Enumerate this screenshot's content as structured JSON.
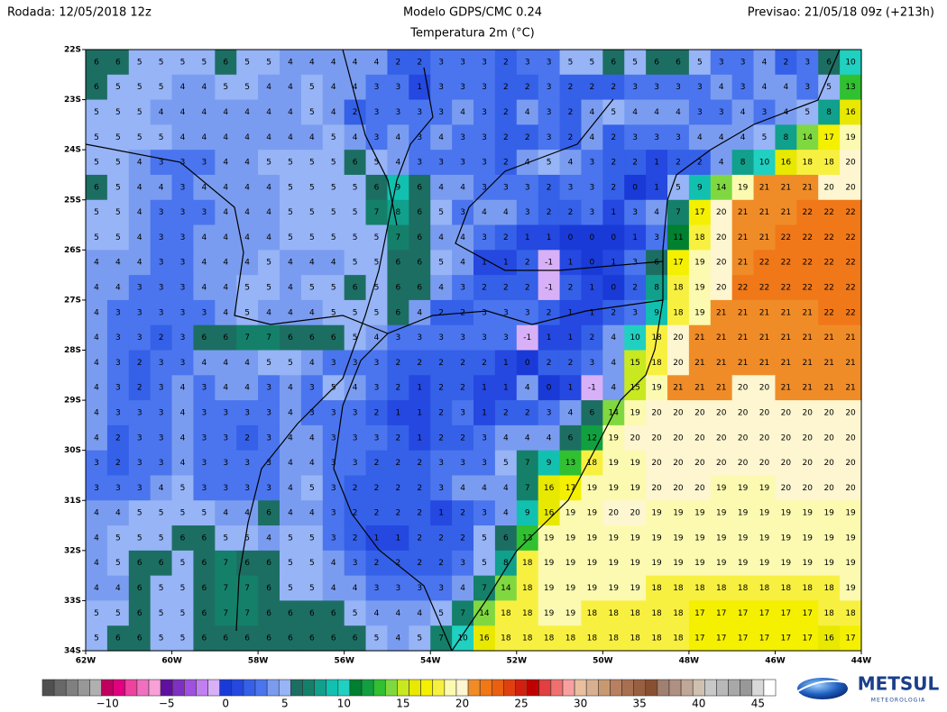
{
  "header": {
    "run": "Rodada: 12/05/2018 12z",
    "model": "Modelo GDPS/CMC 0.24",
    "field": "Temperatura 2m (°C)",
    "forecast": "Previsao: 21/05/18 09z (+213h)"
  },
  "map": {
    "xlim": [
      -62,
      -44
    ],
    "ylim": [
      -22,
      -34
    ],
    "xticks": [
      {
        "value": -62,
        "label": "62W"
      },
      {
        "value": -60,
        "label": "60W"
      },
      {
        "value": -58,
        "label": "58W"
      },
      {
        "value": -56,
        "label": "56W"
      },
      {
        "value": -54,
        "label": "54W"
      },
      {
        "value": -52,
        "label": "52W"
      },
      {
        "value": -50,
        "label": "50W"
      },
      {
        "value": -48,
        "label": "48W"
      },
      {
        "value": -46,
        "label": "46W"
      },
      {
        "value": -44,
        "label": "44W"
      }
    ],
    "yticks": [
      {
        "value": -22,
        "label": "22S"
      },
      {
        "value": -23,
        "label": "23S"
      },
      {
        "value": -24,
        "label": "24S"
      },
      {
        "value": -25,
        "label": "25S"
      },
      {
        "value": -26,
        "label": "26S"
      },
      {
        "value": -27,
        "label": "27S"
      },
      {
        "value": -28,
        "label": "28S"
      },
      {
        "value": -29,
        "label": "29S"
      },
      {
        "value": -30,
        "label": "30S"
      },
      {
        "value": -31,
        "label": "31S"
      },
      {
        "value": -32,
        "label": "32S"
      },
      {
        "value": -33,
        "label": "33S"
      },
      {
        "value": -34,
        "label": "34S"
      }
    ],
    "values": [
      [
        6,
        6,
        5,
        5,
        5,
        5,
        6,
        5,
        5,
        4,
        4,
        4,
        4,
        4,
        2,
        2,
        3,
        3,
        3,
        2,
        3,
        3,
        5,
        5,
        6,
        5,
        6,
        6,
        5,
        3,
        3,
        4,
        2,
        3,
        6,
        10
      ],
      [
        6,
        5,
        5,
        5,
        4,
        4,
        5,
        5,
        4,
        4,
        5,
        4,
        4,
        3,
        3,
        1,
        3,
        3,
        3,
        2,
        2,
        3,
        2,
        2,
        2,
        3,
        3,
        3,
        3,
        4,
        3,
        4,
        4,
        3,
        5,
        13
      ],
      [
        5,
        5,
        5,
        4,
        4,
        4,
        4,
        4,
        4,
        4,
        5,
        4,
        2,
        3,
        3,
        3,
        3,
        4,
        3,
        2,
        4,
        3,
        2,
        4,
        5,
        4,
        4,
        4,
        3,
        3,
        4,
        3,
        4,
        5,
        8,
        16
      ],
      [
        5,
        5,
        5,
        5,
        4,
        4,
        4,
        4,
        4,
        4,
        4,
        5,
        4,
        3,
        4,
        3,
        4,
        3,
        3,
        2,
        2,
        3,
        2,
        4,
        2,
        3,
        3,
        3,
        4,
        4,
        4,
        5,
        8,
        14,
        17,
        19
      ],
      [
        5,
        5,
        4,
        3,
        3,
        3,
        4,
        4,
        5,
        5,
        5,
        5,
        6,
        5,
        4,
        3,
        3,
        3,
        3,
        2,
        4,
        5,
        4,
        3,
        2,
        2,
        1,
        2,
        2,
        4,
        8,
        10,
        16,
        18,
        18,
        20
      ],
      [
        6,
        5,
        4,
        4,
        3,
        4,
        4,
        4,
        4,
        5,
        5,
        5,
        5,
        6,
        9,
        6,
        4,
        4,
        3,
        3,
        3,
        2,
        3,
        3,
        2,
        0,
        1,
        5,
        9,
        14,
        19,
        21,
        21,
        21,
        20,
        20
      ],
      [
        5,
        5,
        4,
        3,
        3,
        3,
        4,
        4,
        4,
        5,
        5,
        5,
        5,
        7,
        8,
        6,
        5,
        3,
        4,
        4,
        3,
        2,
        2,
        3,
        1,
        3,
        4,
        7,
        17,
        20,
        21,
        21,
        21,
        22,
        22,
        22
      ],
      [
        5,
        5,
        4,
        3,
        3,
        4,
        4,
        4,
        4,
        5,
        5,
        5,
        5,
        5,
        7,
        6,
        4,
        4,
        3,
        2,
        1,
        1,
        0,
        0,
        0,
        1,
        3,
        11,
        18,
        20,
        21,
        21,
        22,
        22,
        22,
        22
      ],
      [
        4,
        4,
        4,
        3,
        3,
        4,
        4,
        4,
        5,
        4,
        4,
        4,
        5,
        5,
        6,
        6,
        5,
        4,
        1,
        1,
        2,
        -1,
        1,
        0,
        1,
        3,
        6,
        17,
        19,
        20,
        21,
        22,
        22,
        22,
        22,
        22
      ],
      [
        4,
        4,
        3,
        3,
        3,
        4,
        4,
        5,
        5,
        4,
        5,
        5,
        6,
        5,
        6,
        6,
        4,
        3,
        2,
        2,
        2,
        -1,
        2,
        1,
        0,
        2,
        8,
        18,
        19,
        20,
        22,
        22,
        22,
        22,
        22,
        22
      ],
      [
        4,
        3,
        3,
        3,
        3,
        3,
        4,
        5,
        4,
        4,
        4,
        5,
        5,
        5,
        6,
        4,
        2,
        2,
        3,
        3,
        3,
        2,
        1,
        1,
        2,
        3,
        9,
        18,
        19,
        21,
        21,
        21,
        21,
        21,
        22,
        22
      ],
      [
        4,
        3,
        3,
        2,
        3,
        6,
        6,
        7,
        7,
        6,
        6,
        6,
        5,
        4,
        3,
        3,
        3,
        3,
        3,
        3,
        -1,
        1,
        1,
        2,
        4,
        10,
        18,
        20,
        21,
        21,
        21,
        21,
        21,
        21,
        21,
        21
      ],
      [
        4,
        3,
        2,
        3,
        3,
        4,
        4,
        4,
        5,
        5,
        4,
        3,
        3,
        3,
        2,
        2,
        2,
        2,
        2,
        1,
        0,
        2,
        2,
        3,
        4,
        15,
        18,
        20,
        21,
        21,
        21,
        21,
        21,
        21,
        21,
        21
      ],
      [
        4,
        3,
        2,
        3,
        4,
        3,
        4,
        4,
        3,
        4,
        3,
        5,
        4,
        3,
        2,
        1,
        2,
        2,
        1,
        1,
        4,
        0,
        1,
        -1,
        4,
        15,
        19,
        21,
        21,
        21,
        20,
        20,
        21,
        21,
        21,
        21
      ],
      [
        4,
        3,
        3,
        3,
        4,
        3,
        3,
        3,
        3,
        4,
        3,
        3,
        3,
        2,
        1,
        1,
        2,
        3,
        1,
        2,
        2,
        3,
        4,
        6,
        14,
        19,
        20,
        20,
        20,
        20,
        20,
        20,
        20,
        20,
        20,
        20
      ],
      [
        4,
        2,
        3,
        3,
        4,
        3,
        3,
        2,
        3,
        4,
        4,
        3,
        3,
        3,
        2,
        1,
        2,
        2,
        3,
        4,
        4,
        4,
        6,
        12,
        19,
        20,
        20,
        20,
        20,
        20,
        20,
        20,
        20,
        20,
        20,
        20
      ],
      [
        3,
        2,
        3,
        3,
        4,
        3,
        3,
        3,
        3,
        4,
        4,
        3,
        3,
        2,
        2,
        2,
        3,
        3,
        3,
        5,
        7,
        9,
        13,
        18,
        19,
        19,
        20,
        20,
        20,
        20,
        20,
        20,
        20,
        20,
        20,
        20
      ],
      [
        3,
        3,
        3,
        4,
        5,
        3,
        3,
        3,
        3,
        4,
        5,
        3,
        2,
        2,
        2,
        2,
        3,
        4,
        4,
        4,
        7,
        16,
        17,
        19,
        19,
        19,
        20,
        20,
        20,
        19,
        19,
        19,
        20,
        20,
        20,
        20
      ],
      [
        4,
        4,
        5,
        5,
        5,
        5,
        4,
        4,
        6,
        4,
        4,
        3,
        2,
        2,
        2,
        2,
        1,
        2,
        3,
        4,
        9,
        16,
        19,
        19,
        20,
        20,
        19,
        19,
        19,
        19,
        19,
        19,
        19,
        19,
        19,
        19
      ],
      [
        4,
        5,
        5,
        5,
        6,
        6,
        5,
        5,
        4,
        5,
        5,
        3,
        2,
        1,
        1,
        2,
        2,
        2,
        5,
        6,
        13,
        19,
        19,
        19,
        19,
        19,
        19,
        19,
        19,
        19,
        19,
        19,
        19,
        19,
        19,
        19
      ],
      [
        4,
        5,
        6,
        6,
        5,
        6,
        7,
        6,
        6,
        5,
        5,
        4,
        3,
        2,
        2,
        2,
        2,
        3,
        5,
        8,
        18,
        19,
        19,
        19,
        19,
        19,
        19,
        19,
        19,
        19,
        19,
        19,
        19,
        19,
        19,
        19
      ],
      [
        4,
        4,
        6,
        5,
        5,
        6,
        7,
        7,
        6,
        5,
        5,
        4,
        4,
        3,
        3,
        3,
        3,
        4,
        7,
        14,
        18,
        19,
        19,
        19,
        19,
        19,
        18,
        18,
        18,
        18,
        18,
        18,
        18,
        18,
        18,
        19
      ],
      [
        5,
        5,
        6,
        5,
        5,
        6,
        7,
        7,
        6,
        6,
        6,
        6,
        5,
        4,
        4,
        4,
        5,
        7,
        14,
        18,
        18,
        19,
        19,
        18,
        18,
        18,
        18,
        18,
        17,
        17,
        17,
        17,
        17,
        17,
        18,
        18
      ],
      [
        5,
        6,
        6,
        5,
        5,
        6,
        6,
        6,
        6,
        6,
        6,
        6,
        6,
        5,
        4,
        5,
        7,
        10,
        16,
        18,
        18,
        18,
        18,
        18,
        18,
        18,
        18,
        18,
        17,
        17,
        17,
        17,
        17,
        17,
        16,
        17
      ]
    ]
  },
  "colorbar": {
    "lim": [
      -15,
      47
    ],
    "colors": [
      "#505050",
      "#686868",
      "#808080",
      "#989898",
      "#b0b0b0",
      "#c00060",
      "#e00080",
      "#f040a0",
      "#f070c0",
      "#f8a0d8",
      "#6010a0",
      "#8030c0",
      "#a050e0",
      "#c080f0",
      "#d8b0f8",
      "#1a3ad8",
      "#2448e0",
      "#3560e8",
      "#4a75ee",
      "#7a9cf0",
      "#96b4f6",
      "#1c6e62",
      "#14806a",
      "#10a08c",
      "#12c0b0",
      "#20d0c0",
      "#008030",
      "#10a040",
      "#30c030",
      "#80d840",
      "#c8e820",
      "#e8e800",
      "#f4f000",
      "#f8f040",
      "#fbfab0",
      "#fdf6d0",
      "#f08c28",
      "#f07818",
      "#e86010",
      "#e04010",
      "#d02010",
      "#c00000",
      "#e04040",
      "#f07070",
      "#f8a0a0",
      "#e8c0a0",
      "#d8b090",
      "#c89870",
      "#b88060",
      "#a87050",
      "#986040",
      "#885030",
      "#a08070",
      "#b09080",
      "#c0a898",
      "#d0c0b0",
      "#c8c8c8",
      "#b8b8b8",
      "#a8a8a8",
      "#989898",
      "#d8d8d8",
      "#ffffff"
    ],
    "ticks": [
      {
        "value": -10,
        "label": "−10"
      },
      {
        "value": -5,
        "label": "−5"
      },
      0,
      5,
      10,
      15,
      20,
      25,
      30,
      35,
      40,
      45
    ]
  },
  "logo": {
    "name": "METSUL",
    "tagline": "METEOROLOGIA"
  }
}
